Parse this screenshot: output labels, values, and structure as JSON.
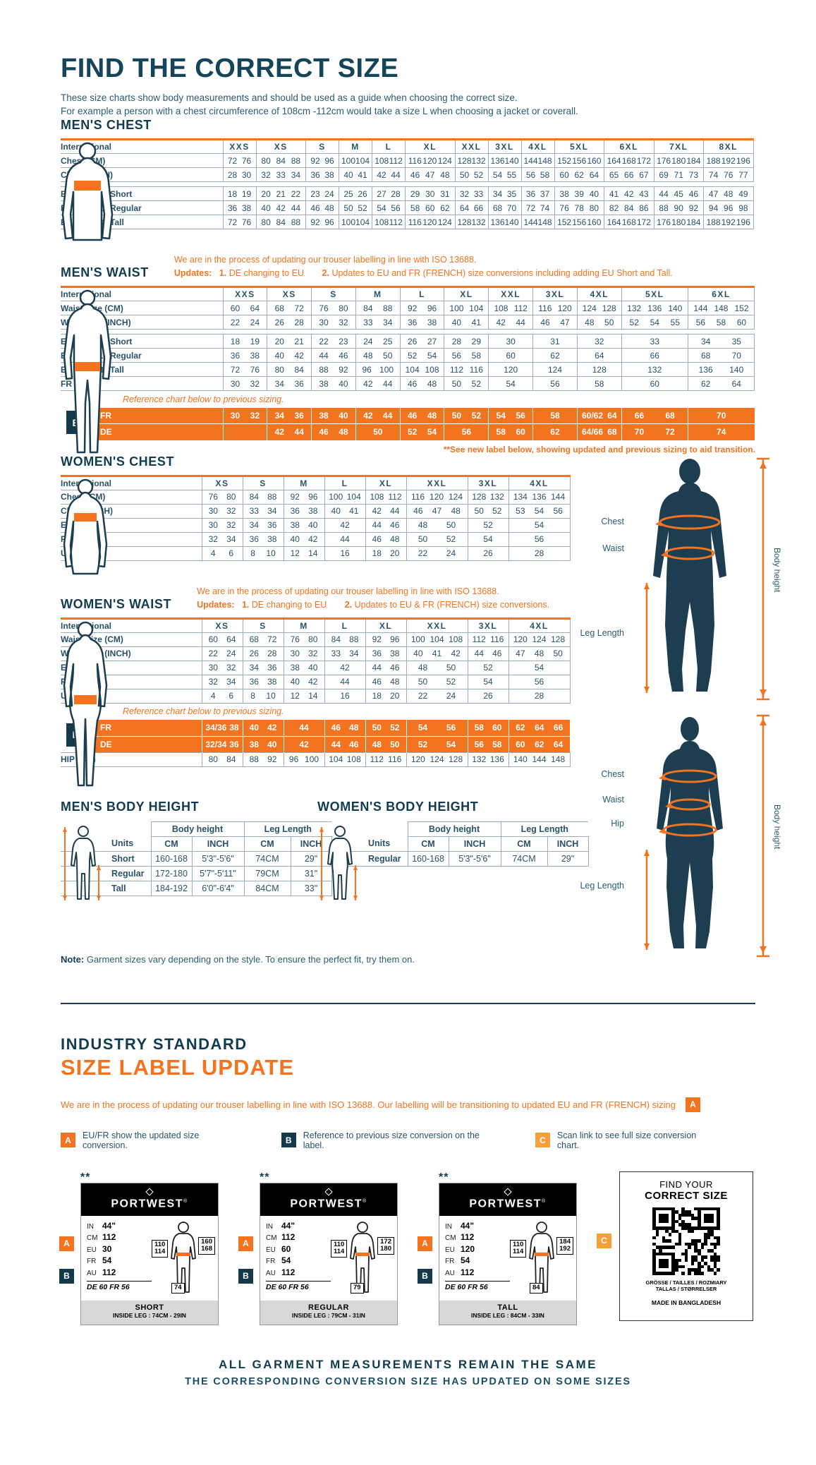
{
  "page": {
    "title": "FIND THE CORRECT SIZE",
    "subtitle1": "These size charts show body measurements and should be used as a guide when choosing the correct size.",
    "subtitle2": "For example a person with a chest circumference of 108cm -112cm would take a size L when choosing a jacket or coverall.",
    "note_label": "Note:",
    "note_text": "Garment sizes vary depending on the style. To ensure the perfect fit, try them on."
  },
  "colors": {
    "navy": "#1e4a5f",
    "navy_dark": "#14394a",
    "orange": "#f4731f",
    "amber": "#f6a03a",
    "line": "#9db0ba"
  },
  "mens_chest": {
    "heading": "MEN'S CHEST",
    "col_label": "International",
    "sizes": [
      "XXS",
      "XS",
      "S",
      "M",
      "L",
      "XL",
      "XXL",
      "3XL",
      "4XL",
      "5XL",
      "6XL",
      "7XL",
      "8XL"
    ],
    "units": [
      2,
      3,
      2,
      2,
      2,
      3,
      2,
      2,
      2,
      3,
      3,
      3,
      3
    ],
    "rows": [
      {
        "label": "Chest (CM)",
        "cells": [
          "72 76",
          "80 84 88",
          "92 96",
          "100 104",
          "108 112",
          "116 120 124",
          "128 132",
          "136 140",
          "144 148",
          "152 156 160",
          "164 168 172",
          "176 180 184",
          "188 192 196"
        ]
      },
      {
        "label": "Chest (INCH)",
        "cells": [
          "28 30",
          "32 33 34",
          "36 38",
          "40 41",
          "42 44",
          "46 47 48",
          "50 52",
          "54 55",
          "56 58",
          "60 62 64",
          "65 66 67",
          "69 71 73",
          "74 76 77"
        ]
      },
      {
        "label": "EU Size 29” Short",
        "gap_before": true,
        "cells": [
          "18 19",
          "20 21 22",
          "23 24",
          "25 26",
          "27 28",
          "29 30 31",
          "32 33",
          "34 35",
          "36 37",
          "38 39 40",
          "41 42 43",
          "44 45 46",
          "47 48 49"
        ]
      },
      {
        "label": "EU Size 31” Regular",
        "cells": [
          "36 38",
          "40 42 44",
          "46 48",
          "50 52",
          "54 56",
          "58 60 62",
          "64 66",
          "68 70",
          "72 74",
          "76 78 80",
          "82 84 86",
          "88 90 92",
          "94 96 98"
        ]
      },
      {
        "label": "EU Size 33” Tall",
        "cells": [
          "72 76",
          "80 84 88",
          "92 96",
          "100 104",
          "108 112",
          "116 120 124",
          "128 132",
          "136 140",
          "144 148",
          "152 156 160",
          "164 168 172",
          "176 180 184",
          "188 192 196"
        ]
      }
    ]
  },
  "mens_waist": {
    "heading": "MEN'S WAIST",
    "note1": "We are in the process of updating our trouser labelling in line with ISO 13688.",
    "note2_label": "Updates:",
    "note2_items": [
      {
        "num": "1.",
        "text": "DE changing to EU"
      },
      {
        "num": "2.",
        "text": "Updates to EU and FR (FRENCH) size conversions including adding EU Short and Tall."
      }
    ],
    "col_label": "International",
    "sizes": [
      "XXS",
      "XS",
      "S",
      "M",
      "L",
      "XL",
      "XXL",
      "3XL",
      "4XL",
      "5XL",
      "6XL"
    ],
    "units": [
      2,
      2,
      2,
      2,
      2,
      2,
      2,
      2,
      2,
      3,
      3
    ],
    "rows": [
      {
        "label": "Waist Size (CM)",
        "cells": [
          "60 64",
          "68 72",
          "76 80",
          "84 88",
          "92 96",
          "100 104",
          "108 112",
          "116 120",
          "124 128",
          "132 136 140",
          "144 148 152"
        ]
      },
      {
        "label": "Waist Size (INCH)",
        "cells": [
          "22 24",
          "26 28",
          "30 32",
          "33 34",
          "36 38",
          "40 41",
          "42 44",
          "46 47",
          "48 50",
          "52 54 55",
          "56 58 60"
        ]
      },
      {
        "label": "EU Size 29” Short",
        "gap_before": true,
        "cells": [
          "18 19",
          "20 21",
          "22 23",
          "24 25",
          "26 27",
          "28 29",
          "30",
          "31",
          "32",
          "33",
          "34 35"
        ]
      },
      {
        "label": "EU Size 31” Regular",
        "cells": [
          "36 38",
          "40 42",
          "44 46",
          "48 50",
          "52 54",
          "56 58",
          "60",
          "62",
          "64",
          "66",
          "68 70"
        ]
      },
      {
        "label": "EU Size 33” Tall",
        "cells": [
          "72 76",
          "80 84",
          "88 92",
          "96 100",
          "104 108",
          "112 116",
          "120",
          "124",
          "128",
          "132",
          "136 140"
        ]
      },
      {
        "label": "FR Size",
        "cells": [
          "30 32",
          "34 36",
          "38 40",
          "42 44",
          "46 48",
          "50 52",
          "54",
          "56",
          "58",
          "60",
          "62 64"
        ]
      }
    ],
    "reference_note": "Reference chart below to previous sizing.",
    "badge": "B",
    "orange_rows": [
      {
        "label": "FR",
        "cells": [
          "30 32",
          "34 36",
          "38 40",
          "42 44",
          "46 48",
          "50 52",
          "54 56",
          "58",
          "60/62 64",
          "66 68",
          "70"
        ]
      },
      {
        "label": "DE",
        "cells": [
          "",
          "42 44",
          "46 48",
          "50",
          "52 54",
          "56",
          "58 60",
          "62",
          "64/66 68",
          "70 72",
          "74"
        ]
      }
    ],
    "footnote": "**See new label below, showing updated and previous sizing to aid transition."
  },
  "womens_chest": {
    "heading": "WOMEN'S CHEST",
    "col_label": "International",
    "sizes": [
      "XS",
      "S",
      "M",
      "L",
      "XL",
      "XXL",
      "3XL",
      "4XL"
    ],
    "units": [
      2,
      2,
      2,
      2,
      2,
      3,
      2,
      3
    ],
    "rows": [
      {
        "label": "Chest (CM)",
        "cells": [
          "76 80",
          "84 88",
          "92 96",
          "100 104",
          "108 112",
          "116 120 124",
          "128 132",
          "134 136 144"
        ]
      },
      {
        "label": "Chest (INCH)",
        "cells": [
          "30 32",
          "33 34",
          "36 38",
          "40 41",
          "42 44",
          "46 47 48",
          "50 52",
          "53 54 56"
        ]
      },
      {
        "label": "EU",
        "cells": [
          "30 32",
          "34 36",
          "38 40",
          "42",
          "44 46",
          "48 50",
          "52",
          "54"
        ]
      },
      {
        "label": "FR",
        "cells": [
          "32 34",
          "36 38",
          "40 42",
          "44",
          "46 48",
          "50 52",
          "54",
          "56"
        ]
      },
      {
        "label": "UK",
        "cells": [
          "4 6",
          "8 10",
          "12 14",
          "16",
          "18 20",
          "22 24",
          "26",
          "28"
        ]
      }
    ]
  },
  "womens_waist": {
    "heading": "WOMEN'S WAIST",
    "note1": "We are in the process of updating our trouser labelling in line with ISO 13688.",
    "note2_label": "Updates:",
    "note2_items": [
      {
        "num": "1.",
        "text": "DE changing to EU"
      },
      {
        "num": "2.",
        "text": "Updates to EU & FR (FRENCH) size conversions."
      }
    ],
    "col_label": "International",
    "sizes": [
      "XS",
      "S",
      "M",
      "L",
      "XL",
      "XXL",
      "3XL",
      "4XL"
    ],
    "units": [
      2,
      2,
      2,
      2,
      2,
      3,
      2,
      3
    ],
    "rows": [
      {
        "label": "Waist Size (CM)",
        "cells": [
          "60 64",
          "68 72",
          "76 80",
          "84 88",
          "92 96",
          "100 104 108",
          "112 116",
          "120 124 128"
        ]
      },
      {
        "label": "Waist Size (INCH)",
        "cells": [
          "22 24",
          "26 28",
          "30 32",
          "33 34",
          "36 38",
          "40 41 42",
          "44 46",
          "47 48 50"
        ]
      },
      {
        "label": "EU",
        "cells": [
          "30 32",
          "34 36",
          "38 40",
          "42",
          "44 46",
          "48 50",
          "52",
          "54"
        ]
      },
      {
        "label": "FR",
        "cells": [
          "32 34",
          "36 38",
          "40 42",
          "44",
          "46 48",
          "50 52",
          "54",
          "56"
        ]
      },
      {
        "label": "UK",
        "cells": [
          "4 6",
          "8 10",
          "12 14",
          "16",
          "18 20",
          "22 24",
          "26",
          "28"
        ]
      }
    ],
    "reference_note": "Reference chart below to previous sizing.",
    "badge": "B",
    "orange_rows": [
      {
        "label": "FR",
        "cells": [
          "34/36 38",
          "40 42",
          "44",
          "46 48",
          "50 52",
          "54 56",
          "58 60",
          "62 64 66"
        ]
      },
      {
        "label": "DE",
        "cells": [
          "32/34 36",
          "38 40",
          "42",
          "44 46",
          "48 50",
          "52 54",
          "56 58",
          "60 62 64"
        ]
      }
    ],
    "rows_after": [
      {
        "label": "HIP (CM)",
        "cells": [
          "80 84",
          "88 92",
          "96 100",
          "104 108",
          "112 116",
          "120 124 128",
          "132 136",
          "140 144 148"
        ]
      }
    ]
  },
  "mens_body_height": {
    "heading": "MEN'S BODY HEIGHT",
    "units_label": "Units",
    "group_headers": [
      "Body height",
      "Leg Length"
    ],
    "col_headers": [
      "CM",
      "INCH",
      "CM",
      "INCH"
    ],
    "rows": [
      {
        "label": "Short",
        "cells": [
          "160-168",
          "5'3\"-5'6\"",
          "74CM",
          "29\""
        ]
      },
      {
        "label": "Regular",
        "cells": [
          "172-180",
          "5'7\"-5'11\"",
          "79CM",
          "31\""
        ]
      },
      {
        "label": "Tall",
        "cells": [
          "184-192",
          "6'0\"-6'4\"",
          "84CM",
          "33\""
        ]
      }
    ]
  },
  "womens_body_height": {
    "heading": "WOMEN'S BODY HEIGHT",
    "units_label": "Units",
    "group_headers": [
      "Body height",
      "Leg Length"
    ],
    "col_headers": [
      "CM",
      "INCH",
      "CM",
      "INCH"
    ],
    "rows": [
      {
        "label": "Regular",
        "cells": [
          "160-168",
          "5'3\"-5'6\"",
          "74CM",
          "29\""
        ]
      }
    ]
  },
  "figure_labels": {
    "male": [
      "Chest",
      "Waist",
      "Leg Length"
    ],
    "male_vertical": "Body height",
    "female": [
      "Chest",
      "Waist",
      "Hip",
      "Leg Length"
    ],
    "female_vertical": "Body height"
  },
  "industry": {
    "heading1": "INDUSTRY STANDARD",
    "heading2": "SIZE LABEL UPDATE",
    "intro": "We are in the process of updating our trouser labelling in line with ISO 13688. Our labelling will be transitioning to updated EU and FR (FRENCH) sizing",
    "intro_badge": "A",
    "legend": [
      {
        "badge": "A",
        "text": "EU/FR show the updated size conversion."
      },
      {
        "badge": "B",
        "text": "Reference to previous size conversion on the label."
      },
      {
        "badge": "C",
        "text": "Scan link to see full size conversion chart."
      }
    ]
  },
  "size_labels": {
    "row_labels": [
      "IN",
      "CM",
      "EU",
      "FR",
      "AU"
    ],
    "badge_a": "A",
    "badge_b": "B",
    "cards": [
      {
        "stars": "**",
        "brand": "PORTWEST",
        "reg": "®",
        "values": [
          "44\"",
          "112",
          "30",
          "54",
          "112"
        ],
        "de_fr": "DE 60 FR 56",
        "box1": [
          "110",
          "114"
        ],
        "box2": [
          "160",
          "168"
        ],
        "waist": "74",
        "name": "SHORT",
        "leg": "INSIDE LEG : 74CM - 29IN"
      },
      {
        "stars": "**",
        "brand": "PORTWEST",
        "reg": "®",
        "values": [
          "44\"",
          "112",
          "60",
          "54",
          "112"
        ],
        "de_fr": "DE 60 FR 56",
        "box1": [
          "110",
          "114"
        ],
        "box2": [
          "172",
          "180"
        ],
        "waist": "79",
        "name": "REGULAR",
        "leg": "INSIDE LEG : 79CM - 31IN"
      },
      {
        "stars": "**",
        "brand": "PORTWEST",
        "reg": "®",
        "values": [
          "44\"",
          "112",
          "120",
          "54",
          "112"
        ],
        "de_fr": "DE 60 FR 56",
        "box1": [
          "110",
          "114"
        ],
        "box2": [
          "184",
          "192"
        ],
        "waist": "84",
        "name": "TALL",
        "leg": "INSIDE LEG : 84CM - 33IN"
      }
    ]
  },
  "qr_card": {
    "badge": "C",
    "title1": "FIND YOUR",
    "title2": "CORRECT SIZE",
    "langs1": "GRÖSSE / TAILLES / ROZMIARY",
    "langs2": "TALLAS / STØRRELSER",
    "made": "MADE IN BANGLADESH"
  },
  "footer": {
    "line1": "ALL GARMENT MEASUREMENTS REMAIN THE SAME",
    "line2": "THE CORRESPONDING CONVERSION SIZE HAS UPDATED ON SOME SIZES"
  }
}
